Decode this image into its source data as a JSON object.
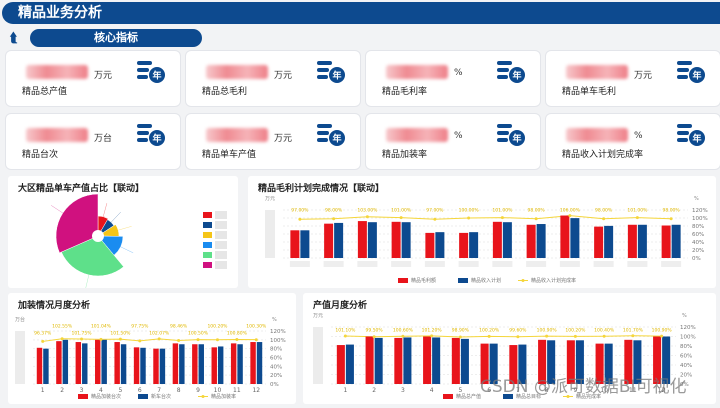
{
  "header": {
    "title": "精品业务分析"
  },
  "section": {
    "title": "核心指标",
    "back_icon": "refresh-back-icon"
  },
  "kpis": [
    {
      "label": "精品总产值",
      "unit": "万元"
    },
    {
      "label": "精品总毛利",
      "unit": "万元"
    },
    {
      "label": "精品毛利率",
      "unit": "%"
    },
    {
      "label": "精品单车毛利",
      "unit": "万元"
    },
    {
      "label": "精品台次",
      "unit": "万台"
    },
    {
      "label": "精品单车产值",
      "unit": "万元"
    },
    {
      "label": "精品加装率",
      "unit": "%"
    },
    {
      "label": "精品收入计划完成率",
      "unit": "%"
    }
  ],
  "kpi_icon_text": "年",
  "colors": {
    "brand": "#0d4a8f",
    "red": "#e8141b",
    "blue": "#0d4a8f",
    "line": "#f5d63b"
  },
  "chart_data": [
    {
      "id": "pie",
      "type": "pie",
      "title": "大区精品单车产值占比【联动】",
      "rose": true,
      "values": [
        8,
        7,
        9,
        13,
        28,
        30
      ],
      "colors": [
        "#e8141b",
        "#0d4a8f",
        "#f5c518",
        "#1a8cf0",
        "#5ee08a",
        "#d0117f"
      ]
    },
    {
      "id": "gross",
      "type": "bar",
      "title": "精品毛利计划完成情况【联动】",
      "ylabel": "万元",
      "y2label": "%",
      "categories": [
        "",
        "",
        "",
        "",
        "",
        "",
        "",
        "",
        "",
        "",
        "",
        ""
      ],
      "series": [
        {
          "name": "精品毛利额",
          "values": [
            75,
            93,
            100,
            98,
            68,
            68,
            98,
            90,
            115,
            85,
            90,
            88
          ]
        },
        {
          "name": "精品收入计划",
          "values": [
            75,
            95,
            97,
            97,
            70,
            70,
            97,
            92,
            108,
            87,
            90,
            90
          ]
        }
      ],
      "line": {
        "name": "精品收入计划完成率",
        "values": [
          97,
          98,
          103,
          101,
          97,
          100,
          101,
          98,
          106,
          98,
          101,
          98
        ]
      },
      "y2ticks": [
        "0%",
        "20%",
        "40%",
        "60%",
        "80%",
        "100%",
        "120%"
      ],
      "ylim": [
        0,
        130
      ],
      "y2lim": [
        0,
        120
      ]
    },
    {
      "id": "install",
      "type": "bar",
      "title": "加装情况月度分析",
      "ylabel": "万台",
      "y2label": "%",
      "categories": [
        "1",
        "2",
        "3",
        "4",
        "5",
        "6",
        "7",
        "8",
        "9",
        "10",
        "11",
        "12"
      ],
      "series": [
        {
          "name": "精品加装台次",
          "values": [
            82,
            97,
            95,
            100,
            95,
            83,
            80,
            92,
            90,
            83,
            92,
            95
          ]
        },
        {
          "name": "新车台次",
          "values": [
            80,
            100,
            92,
            100,
            90,
            82,
            80,
            90,
            90,
            85,
            90,
            95
          ]
        }
      ],
      "line": {
        "name": "精品加装率",
        "values": [
          96.37,
          102.55,
          101.75,
          101.04,
          101.5,
          97.75,
          102.07,
          98.46,
          100.5,
          100.2,
          100.8,
          100.3
        ]
      },
      "y2ticks": [
        "0%",
        "20%",
        "40%",
        "60%",
        "80%",
        "100%",
        "120%"
      ],
      "ylim": [
        0,
        120
      ],
      "y2lim": [
        0,
        120
      ]
    },
    {
      "id": "output",
      "type": "bar",
      "title": "产值月度分析",
      "ylabel": "万元",
      "y2label": "%",
      "categories": [
        "1",
        "2",
        "3",
        "4",
        "5",
        "6",
        "7",
        "8",
        "9",
        "10",
        "11",
        "12"
      ],
      "series": [
        {
          "name": "精品总产值",
          "values": [
            82,
            100,
            97,
            100,
            97,
            85,
            82,
            93,
            92,
            85,
            93,
            100
          ]
        },
        {
          "name": "精品总目标",
          "values": [
            83,
            97,
            98,
            98,
            95,
            85,
            83,
            92,
            92,
            85,
            92,
            100
          ]
        }
      ],
      "line": {
        "name": "精品完成率",
        "values": [
          101.1,
          99.5,
          100.6,
          101.2,
          98.9,
          100.2,
          99.6,
          100.9,
          100.2,
          100.4,
          101.7,
          100.9
        ]
      },
      "y2ticks": [
        "0%",
        "20%",
        "40%",
        "60%",
        "80%",
        "100%",
        "120%"
      ],
      "ylim": [
        0,
        120
      ],
      "y2lim": [
        0,
        120
      ]
    }
  ],
  "watermark": "CSDN @派可数据BI可视化"
}
